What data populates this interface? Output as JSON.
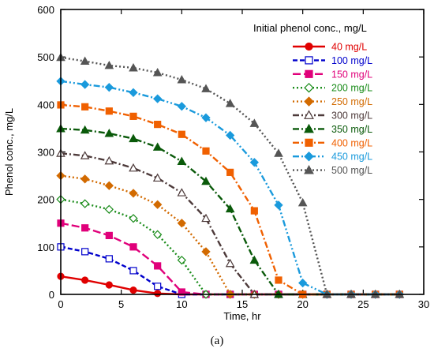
{
  "chart_data": {
    "type": "line",
    "xlabel": "Time, hr",
    "ylabel": "Phenol conc., mg/L",
    "xlim": [
      0,
      30
    ],
    "ylim": [
      0,
      600
    ],
    "xticks": [
      0,
      5,
      10,
      15,
      20,
      25,
      30
    ],
    "yticks": [
      0,
      100,
      200,
      300,
      400,
      500,
      600
    ],
    "grid": false,
    "legend_title": "Initial phenol conc., mg/L",
    "legend_position": "top-right",
    "caption": "(a)",
    "x": [
      0,
      2,
      4,
      6,
      8,
      10,
      12,
      14,
      16,
      18,
      20,
      22,
      24,
      26,
      28
    ],
    "series": [
      {
        "name": "40 mg/L",
        "color": "#e00000",
        "marker": "circle",
        "filled": true,
        "dash": "solid",
        "values": [
          38,
          30,
          20,
          9,
          2,
          0,
          0,
          0,
          0,
          0,
          0,
          0,
          0,
          0,
          0
        ]
      },
      {
        "name": "100 mg/L",
        "color": "#0000cc",
        "marker": "square",
        "filled": false,
        "dash": "dash",
        "values": [
          100,
          90,
          75,
          50,
          17,
          0,
          0,
          0,
          0,
          0,
          0,
          0,
          0,
          0,
          0
        ]
      },
      {
        "name": "150 mg/L",
        "color": "#e0007a",
        "marker": "square",
        "filled": true,
        "dash": "longdash",
        "values": [
          150,
          140,
          124,
          100,
          60,
          5,
          0,
          0,
          0,
          0,
          0,
          0,
          0,
          0,
          0
        ]
      },
      {
        "name": "200 mg/L",
        "color": "#1a8c1a",
        "marker": "diamond",
        "filled": false,
        "dash": "dot",
        "values": [
          200,
          191,
          179,
          160,
          126,
          72,
          0,
          0,
          0,
          0,
          0,
          0,
          0,
          0,
          0
        ]
      },
      {
        "name": "250 mg/L",
        "color": "#d26a00",
        "marker": "diamond",
        "filled": true,
        "dash": "dot",
        "values": [
          250,
          243,
          229,
          213,
          189,
          150,
          90,
          0,
          0,
          0,
          0,
          0,
          0,
          0,
          0
        ]
      },
      {
        "name": "300 mg/L",
        "color": "#4d3a3a",
        "marker": "triangle",
        "filled": false,
        "dash": "dashdot",
        "values": [
          297,
          292,
          281,
          266,
          245,
          214,
          160,
          65,
          0,
          0,
          0,
          0,
          0,
          0,
          0
        ]
      },
      {
        "name": "350 mg/L",
        "color": "#0a5a0a",
        "marker": "triangle",
        "filled": true,
        "dash": "dashdot",
        "values": [
          349,
          346,
          339,
          328,
          310,
          280,
          238,
          180,
          72,
          0,
          0,
          0,
          0,
          0,
          0
        ]
      },
      {
        "name": "400 mg/L",
        "color": "#f06000",
        "marker": "square",
        "filled": true,
        "dash": "dashdot",
        "values": [
          399,
          395,
          386,
          375,
          358,
          337,
          302,
          257,
          176,
          30,
          0,
          0,
          0,
          0,
          0
        ]
      },
      {
        "name": "450 mg/L",
        "color": "#1a9adc",
        "marker": "diamond",
        "filled": true,
        "dash": "dashdotdot",
        "values": [
          449,
          442,
          436,
          425,
          412,
          396,
          372,
          335,
          278,
          188,
          24,
          0,
          0,
          0,
          0
        ]
      },
      {
        "name": "500 mg/L",
        "color": "#555555",
        "marker": "triangle",
        "filled": true,
        "dash": "dot",
        "values": [
          499,
          491,
          482,
          477,
          467,
          452,
          433,
          402,
          360,
          297,
          193,
          0,
          0,
          0,
          0
        ]
      }
    ]
  }
}
